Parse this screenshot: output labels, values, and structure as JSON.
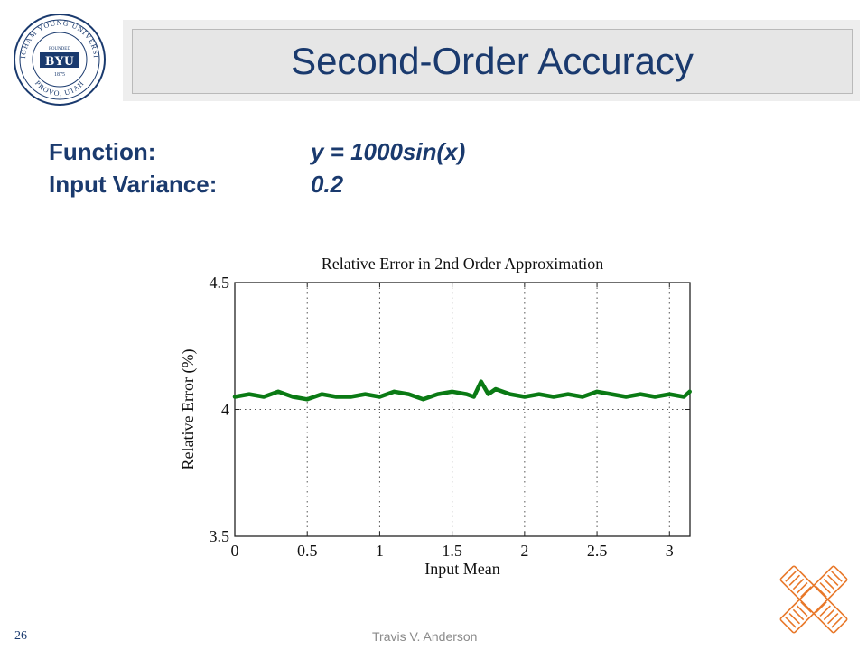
{
  "slide": {
    "title": "Second-Order Accuracy",
    "number": "26",
    "footer": "Travis V. Anderson",
    "logo": {
      "top_text": "BRIGHAM YOUNG UNIVERSITY",
      "bottom_text": "PROVO, UTAH",
      "center_text": "BYU",
      "founded_label": "FOUNDED",
      "year": "1875"
    },
    "info": {
      "function_label": "Function:",
      "function_value": "y = 1000sin(x)",
      "variance_label": "Input Variance:",
      "variance_value": "0.2"
    }
  },
  "colors": {
    "title": "#1a3a6e",
    "series": "#0a7a14",
    "accent": "#e8782a"
  },
  "chart_data": {
    "type": "line",
    "title": "Relative Error in 2nd Order Approximation",
    "xlabel": "Input Mean",
    "ylabel": "Relative Error (%)",
    "xlim": [
      0,
      3.1416
    ],
    "ylim": [
      3.5,
      4.5
    ],
    "xticks": [
      0,
      0.5,
      1,
      1.5,
      2,
      2.5,
      3
    ],
    "xtick_labels": [
      "0",
      "0.5",
      "1",
      "1.5",
      "2",
      "2.5",
      "3"
    ],
    "yticks": [
      3.5,
      4,
      4.5
    ],
    "ytick_labels": [
      "3.5",
      "4",
      "4.5"
    ],
    "grid": true,
    "series": [
      {
        "color": "#0a7a14",
        "x": [
          0,
          0.1,
          0.2,
          0.3,
          0.4,
          0.5,
          0.6,
          0.7,
          0.8,
          0.9,
          1.0,
          1.1,
          1.2,
          1.3,
          1.4,
          1.5,
          1.6,
          1.65,
          1.7,
          1.75,
          1.8,
          1.9,
          2.0,
          2.1,
          2.2,
          2.3,
          2.4,
          2.5,
          2.6,
          2.7,
          2.8,
          2.9,
          3.0,
          3.1,
          3.14
        ],
        "y": [
          4.05,
          4.06,
          4.05,
          4.07,
          4.05,
          4.04,
          4.06,
          4.05,
          4.05,
          4.06,
          4.05,
          4.07,
          4.06,
          4.04,
          4.06,
          4.07,
          4.06,
          4.05,
          4.11,
          4.06,
          4.08,
          4.06,
          4.05,
          4.06,
          4.05,
          4.06,
          4.05,
          4.07,
          4.06,
          4.05,
          4.06,
          4.05,
          4.06,
          4.05,
          4.07
        ]
      }
    ]
  }
}
